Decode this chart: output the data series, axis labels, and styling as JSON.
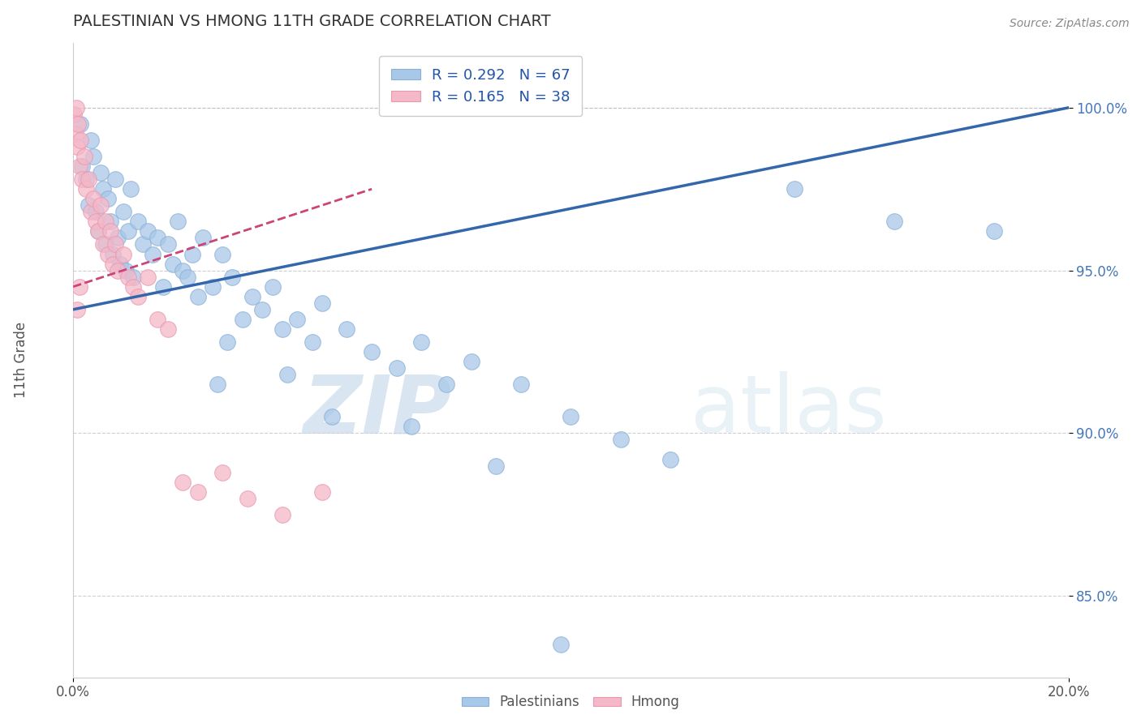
{
  "title": "PALESTINIAN VS HMONG 11TH GRADE CORRELATION CHART",
  "source": "Source: ZipAtlas.com",
  "ylabel": "11th Grade",
  "r_blue": 0.292,
  "n_blue": 67,
  "r_pink": 0.165,
  "n_pink": 38,
  "blue_color": "#a8c8e8",
  "pink_color": "#f4b8c8",
  "blue_line_color": "#3366aa",
  "pink_line_color": "#cc4477",
  "watermark_zip": "ZIP",
  "watermark_atlas": "atlas",
  "xmin": 0.0,
  "xmax": 20.0,
  "ymin": 82.5,
  "ymax": 102.0,
  "blue_line_x0": 0.0,
  "blue_line_y0": 93.8,
  "blue_line_x1": 20.0,
  "blue_line_y1": 100.0,
  "pink_line_x0": 0.0,
  "pink_line_y0": 94.5,
  "pink_line_x1": 6.0,
  "pink_line_y1": 97.5,
  "blue_x": [
    0.15,
    0.18,
    0.25,
    0.3,
    0.35,
    0.4,
    0.45,
    0.5,
    0.55,
    0.6,
    0.65,
    0.7,
    0.75,
    0.8,
    0.85,
    0.9,
    0.95,
    1.0,
    1.05,
    1.1,
    1.15,
    1.2,
    1.3,
    1.4,
    1.5,
    1.6,
    1.7,
    1.8,
    1.9,
    2.0,
    2.1,
    2.2,
    2.3,
    2.4,
    2.5,
    2.6,
    2.8,
    3.0,
    3.2,
    3.4,
    3.6,
    3.8,
    4.0,
    4.2,
    4.5,
    4.8,
    5.0,
    5.5,
    6.0,
    6.5,
    7.0,
    7.5,
    8.0,
    9.0,
    10.0,
    11.0,
    12.0,
    14.5,
    16.5,
    18.5,
    2.9,
    3.1,
    4.3,
    5.2,
    6.8,
    8.5,
    9.8
  ],
  "blue_y": [
    99.5,
    98.2,
    97.8,
    97.0,
    99.0,
    98.5,
    96.8,
    96.2,
    98.0,
    97.5,
    95.8,
    97.2,
    96.5,
    95.5,
    97.8,
    96.0,
    95.2,
    96.8,
    95.0,
    96.2,
    97.5,
    94.8,
    96.5,
    95.8,
    96.2,
    95.5,
    96.0,
    94.5,
    95.8,
    95.2,
    96.5,
    95.0,
    94.8,
    95.5,
    94.2,
    96.0,
    94.5,
    95.5,
    94.8,
    93.5,
    94.2,
    93.8,
    94.5,
    93.2,
    93.5,
    92.8,
    94.0,
    93.2,
    92.5,
    92.0,
    92.8,
    91.5,
    92.2,
    91.5,
    90.5,
    89.8,
    89.2,
    97.5,
    96.5,
    96.2,
    91.5,
    92.8,
    91.8,
    90.5,
    90.2,
    89.0,
    83.5
  ],
  "pink_x": [
    0.02,
    0.04,
    0.06,
    0.08,
    0.1,
    0.12,
    0.15,
    0.18,
    0.22,
    0.25,
    0.3,
    0.35,
    0.4,
    0.45,
    0.5,
    0.55,
    0.6,
    0.65,
    0.7,
    0.75,
    0.8,
    0.85,
    0.9,
    1.0,
    1.1,
    1.2,
    1.3,
    1.5,
    1.7,
    1.9,
    2.2,
    2.5,
    3.0,
    3.5,
    4.2,
    5.0,
    0.08,
    0.12
  ],
  "pink_y": [
    99.8,
    99.2,
    100.0,
    98.8,
    99.5,
    98.2,
    99.0,
    97.8,
    98.5,
    97.5,
    97.8,
    96.8,
    97.2,
    96.5,
    96.2,
    97.0,
    95.8,
    96.5,
    95.5,
    96.2,
    95.2,
    95.8,
    95.0,
    95.5,
    94.8,
    94.5,
    94.2,
    94.8,
    93.5,
    93.2,
    88.5,
    88.2,
    88.8,
    88.0,
    87.5,
    88.2,
    93.8,
    94.5
  ]
}
